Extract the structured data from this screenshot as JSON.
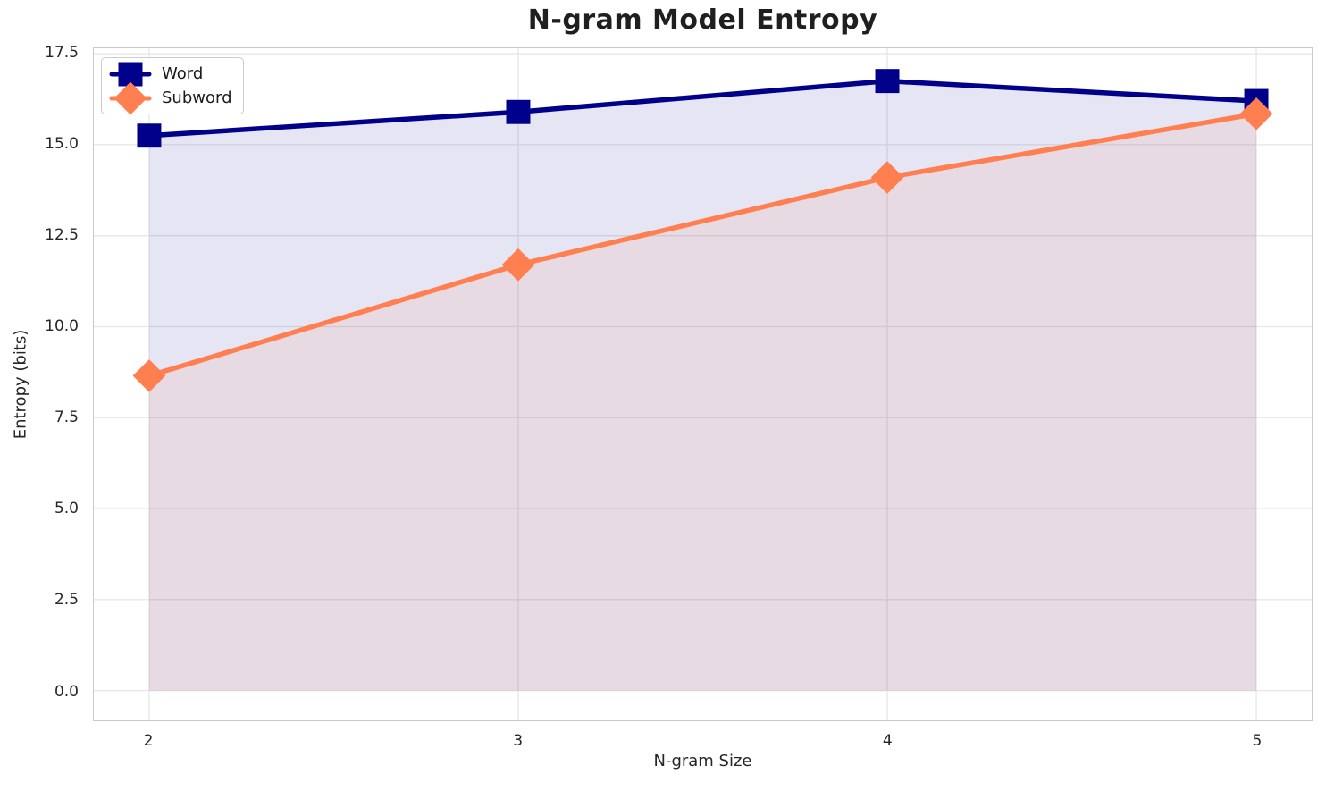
{
  "chart_data": {
    "type": "line",
    "title": "N-gram Model Entropy",
    "xlabel": "N-gram Size",
    "ylabel": "Entropy (bits)",
    "x": [
      2,
      3,
      4,
      5
    ],
    "x_tick_labels": [
      "2",
      "3",
      "4",
      "5"
    ],
    "y_ticks": [
      0.0,
      2.5,
      5.0,
      7.5,
      10.0,
      12.5,
      15.0,
      17.5
    ],
    "y_tick_labels": [
      "0.0",
      "2.5",
      "5.0",
      "7.5",
      "10.0",
      "12.5",
      "15.0",
      "17.5"
    ],
    "xlim": [
      1.85,
      5.15
    ],
    "ylim": [
      -0.82,
      17.65
    ],
    "grid": true,
    "legend_position": "upper left",
    "fill_baseline": 0,
    "series": [
      {
        "name": "Word",
        "marker": "square",
        "color": "#00008b",
        "fill_alpha": 0.1,
        "values": [
          15.25,
          15.9,
          16.75,
          16.2
        ]
      },
      {
        "name": "Subword",
        "marker": "diamond",
        "color": "#ff7f50",
        "fill_alpha": 0.1,
        "values": [
          8.65,
          11.7,
          14.1,
          15.85
        ]
      }
    ]
  }
}
